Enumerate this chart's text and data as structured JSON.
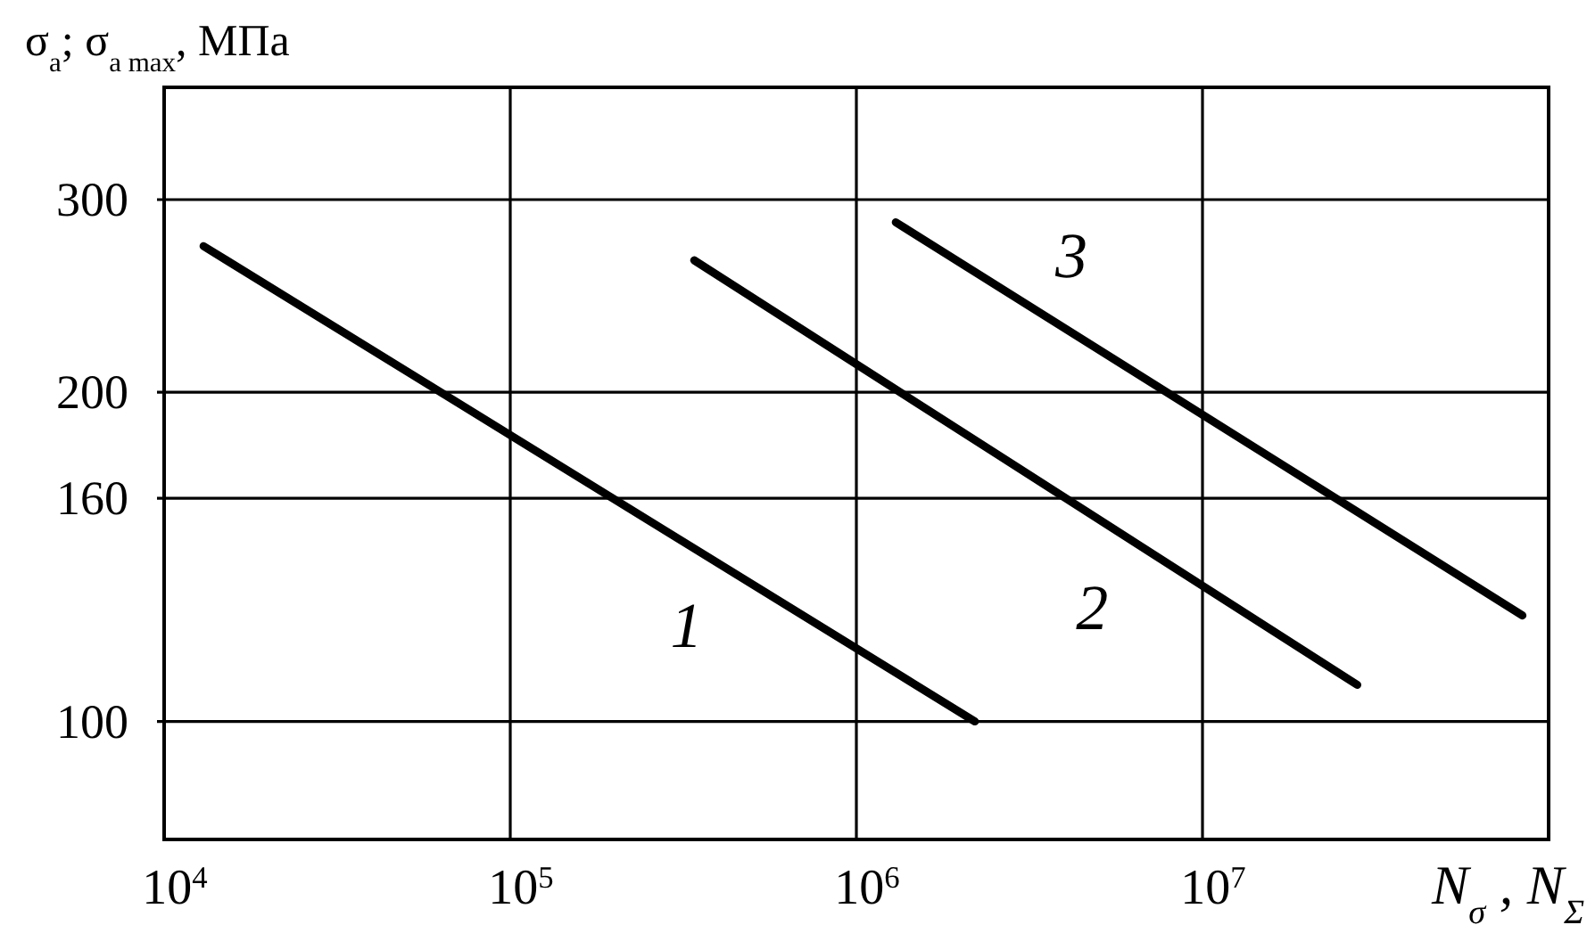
{
  "chart_data": {
    "type": "line",
    "xlabel": "N$_{σ}$ , N$_{Σ}$",
    "ylabel": "σ$_{a}$; σ$_{a max}$, МПа",
    "log": "xy",
    "xlim": [
      10000,
      100000000
    ],
    "xticks": [
      {
        "value": 10000,
        "label": "10$^{4}$"
      },
      {
        "value": 100000,
        "label": "10$^{5}$"
      },
      {
        "value": 1000000,
        "label": "10$^{6}$"
      },
      {
        "value": 10000000,
        "label": "10$^{7}$"
      }
    ],
    "ylim": [
      78,
      380
    ],
    "yticks": [
      100,
      160,
      200,
      300
    ],
    "grid": true,
    "line_style": "solid",
    "series": [
      {
        "name": "1",
        "color": "#000000",
        "x": [
          13000,
          2200000
        ],
        "values": [
          272,
          100
        ]
      },
      {
        "name": "2",
        "color": "#000000",
        "x": [
          340000,
          28000000
        ],
        "values": [
          264,
          108
        ]
      },
      {
        "name": "3",
        "color": "#000000",
        "x": [
          1300000,
          84000000
        ],
        "values": [
          286,
          125
        ]
      }
    ]
  }
}
